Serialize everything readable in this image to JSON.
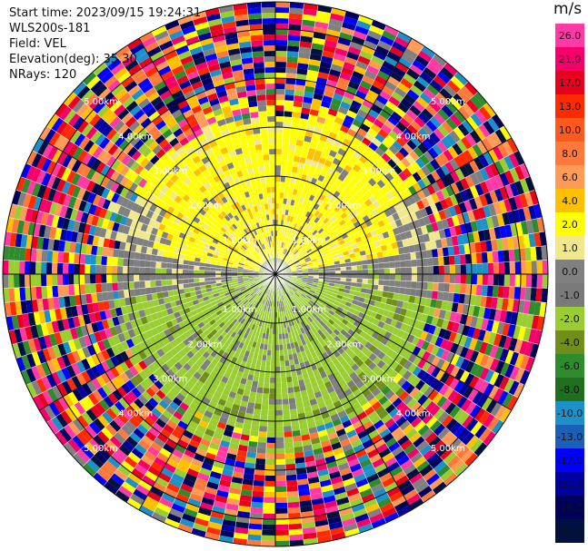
{
  "header": {
    "start_time": "Start time: 2023/09/15 19:24:31",
    "instrument": "WLS200s-181",
    "field": "Field: VEL",
    "elevation": "Elevation(deg): 35.30",
    "nrays": "NRays: 120"
  },
  "colorbar": {
    "unit": "m/s",
    "ticks": [
      "26.0",
      "21.0",
      "17.0",
      "13.0",
      "10.0",
      "8.0",
      "6.0",
      "4.0",
      "2.0",
      "1.0",
      "0.0",
      "-1.0",
      "-2.0",
      "-4.0",
      "-6.0",
      "-8.0",
      "-10.0",
      "-13.0",
      "-17.0",
      "-21.0",
      "-26.0",
      "-30.0"
    ],
    "colors": [
      "#ff3aa5",
      "#f5006a",
      "#e8001e",
      "#ff2a00",
      "#ff5a1e",
      "#ff7a3a",
      "#ff9b57",
      "#ffc000",
      "#ffff00",
      "#f0e88a",
      "#808080",
      "#7a7a7a",
      "#9acd32",
      "#6f8f1a",
      "#2e8b2e",
      "#1f6f1f",
      "#1e90c8",
      "#1a60b8",
      "#0000ff",
      "#0000a0",
      "#00005a",
      "#001040"
    ]
  },
  "chart_data": {
    "type": "heatmap",
    "projection": "PPI polar",
    "field": "VEL",
    "units": "m/s",
    "nrays": 120,
    "range_rings_km": [
      1,
      2,
      3,
      4,
      5
    ],
    "range_ring_labels": [
      "1.00km",
      "2.00km",
      "3.00km",
      "4.00km",
      "5.00km"
    ],
    "spoke_angle_step_deg": 30,
    "color_scale": [
      -30,
      -26,
      -21,
      -17,
      -13,
      -10,
      -8,
      -6,
      -4,
      -2,
      -1,
      0,
      1,
      2,
      4,
      6,
      8,
      10,
      13,
      17,
      21,
      26
    ],
    "pattern": "positive (yellow, ~2 m/s) in northern half near center, weak negative (green, ~-2 m/s) in southern half, near-zero (gray) mid ranges, noisy multi-color beyond ~3.5 km"
  }
}
